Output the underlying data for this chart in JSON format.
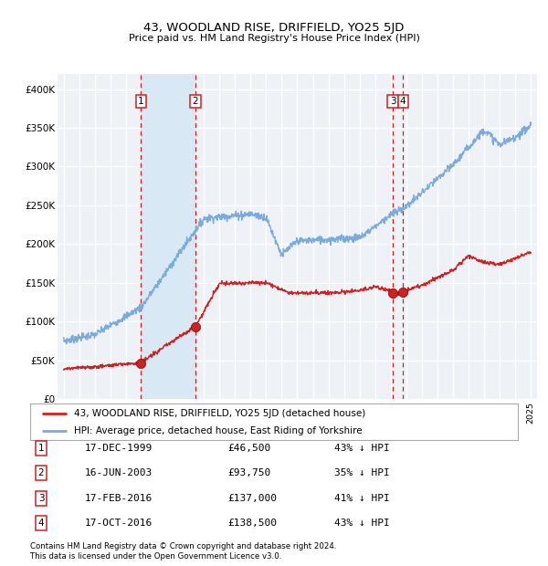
{
  "title": "43, WOODLAND RISE, DRIFFIELD, YO25 5JD",
  "subtitle": "Price paid vs. HM Land Registry's House Price Index (HPI)",
  "ylim": [
    0,
    420000
  ],
  "yticks": [
    0,
    50000,
    100000,
    150000,
    200000,
    250000,
    300000,
    350000,
    400000
  ],
  "ytick_labels": [
    "£0",
    "£50K",
    "£100K",
    "£150K",
    "£200K",
    "£250K",
    "£300K",
    "£350K",
    "£400K"
  ],
  "background_color": "#ffffff",
  "plot_bg_color": "#eef2f7",
  "grid_color": "#ffffff",
  "hpi_color": "#7aabda",
  "price_color": "#cc2222",
  "dashed_line_color": "#cc2222",
  "shade_color": "#d8e8f4",
  "legend_red_label": "43, WOODLAND RISE, DRIFFIELD, YO25 5JD (detached house)",
  "legend_blue_label": "HPI: Average price, detached house, East Riding of Yorkshire",
  "transactions": [
    {
      "num": 1,
      "date": "17-DEC-1999",
      "price": 46500,
      "pct": "43%",
      "year_float": 1999.96
    },
    {
      "num": 2,
      "date": "16-JUN-2003",
      "price": 93750,
      "pct": "35%",
      "year_float": 2003.46
    },
    {
      "num": 3,
      "date": "17-FEB-2016",
      "price": 137000,
      "pct": "41%",
      "year_float": 2016.13
    },
    {
      "num": 4,
      "date": "17-OCT-2016",
      "price": 138500,
      "pct": "43%",
      "year_float": 2016.79
    }
  ],
  "footnote1": "Contains HM Land Registry data © Crown copyright and database right 2024.",
  "footnote2": "This data is licensed under the Open Government Licence v3.0.",
  "xlim_min": 1994.6,
  "xlim_max": 2025.4
}
